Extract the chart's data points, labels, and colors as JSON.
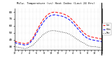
{
  "title": "Milw. Temperature (vs) Heat Index (Last 24 Hrs)",
  "background_color": "#ffffff",
  "plot_bg_color": "#ffffff",
  "grid_color": "#aaaaaa",
  "outdoor_temp": [
    38,
    36,
    35,
    34,
    36,
    42,
    52,
    62,
    70,
    76,
    79,
    80,
    79,
    78,
    76,
    73,
    68,
    62,
    56,
    50,
    46,
    44,
    43,
    42,
    41
  ],
  "heat_index": [
    36,
    34,
    33,
    32,
    34,
    40,
    49,
    58,
    66,
    72,
    75,
    76,
    75,
    74,
    72,
    69,
    64,
    58,
    52,
    46,
    42,
    40,
    39,
    38,
    37
  ],
  "dew_point": [
    30,
    29,
    28,
    27,
    29,
    32,
    37,
    43,
    48,
    51,
    53,
    53,
    52,
    51,
    50,
    48,
    45,
    41,
    38,
    35,
    32,
    30,
    30,
    29,
    28
  ],
  "outdoor_color": "#ff0000",
  "heat_index_color": "#0000ff",
  "dew_point_color": "#000000",
  "ylim_min": 25,
  "ylim_max": 85,
  "yticks": [
    30,
    40,
    50,
    60,
    70,
    80
  ],
  "legend_labels": [
    "Out",
    "HIdx",
    "Dew"
  ],
  "legend_colors": [
    "#ff0000",
    "#0000ff",
    "#000000"
  ]
}
